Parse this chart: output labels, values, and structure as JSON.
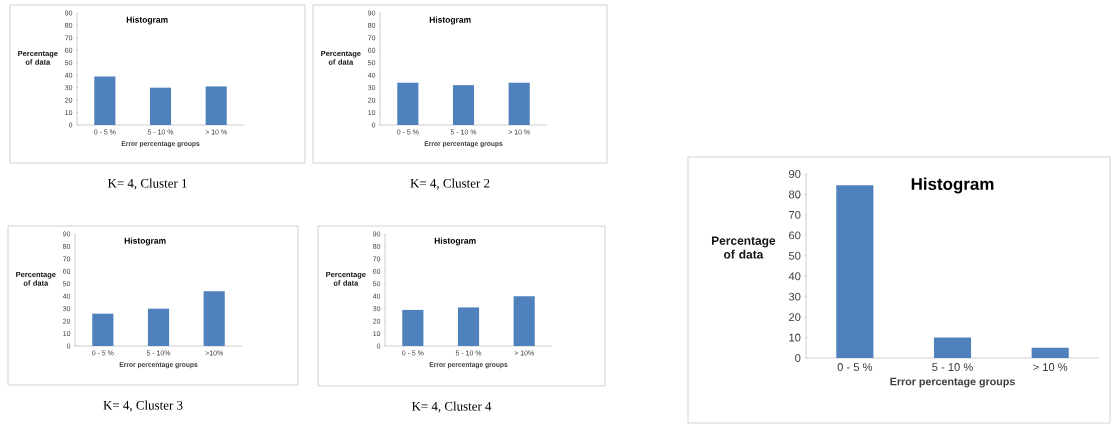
{
  "chart_data": [
    {
      "type": "bar",
      "title": "Histogram",
      "xlabel": "Error percentage groups",
      "ylabel": "Percentage of data",
      "categories": [
        "0 - 5 %",
        "5 - 10 %",
        "> 10 %"
      ],
      "values": [
        39,
        30,
        31
      ],
      "color": "#4f81bd",
      "ylim": [
        0,
        90
      ],
      "yticks": [
        0,
        10,
        20,
        30,
        40,
        50,
        60,
        70,
        80,
        90
      ],
      "annotations": [
        "K= 4, Cluster 1"
      ]
    },
    {
      "type": "bar",
      "title": "Histogram",
      "xlabel": "Error percentage groups",
      "ylabel": "Percentage of data",
      "categories": [
        "0 - 5 %",
        "5 - 10 %",
        "> 10 %"
      ],
      "values": [
        34,
        32,
        34
      ],
      "color": "#4f81bd",
      "ylim": [
        0,
        90
      ],
      "yticks": [
        0,
        10,
        20,
        30,
        40,
        50,
        60,
        70,
        80,
        90
      ],
      "annotations": [
        "K= 4, Cluster 2"
      ]
    },
    {
      "type": "bar",
      "title": "Histogram",
      "xlabel": "Error percentage groups",
      "ylabel": "Percentage of data",
      "categories": [
        "0 - 5 %",
        "5 - 10%",
        ">10%"
      ],
      "values": [
        26,
        30,
        44
      ],
      "color": "#4f81bd",
      "ylim": [
        0,
        90
      ],
      "yticks": [
        0,
        10,
        20,
        30,
        40,
        50,
        60,
        70,
        80,
        90
      ],
      "annotations": [
        "K= 4, Cluster 3"
      ]
    },
    {
      "type": "bar",
      "title": "Histogram",
      "xlabel": "Error percentage groups",
      "ylabel": "Percentage of data",
      "categories": [
        "0 - 5 %",
        "5 - 10 %",
        "> 10%"
      ],
      "values": [
        29,
        31,
        40
      ],
      "color": "#4f81bd",
      "ylim": [
        0,
        90
      ],
      "yticks": [
        0,
        10,
        20,
        30,
        40,
        50,
        60,
        70,
        80,
        90
      ],
      "annotations": [
        "K= 4, Cluster 4"
      ]
    },
    {
      "type": "bar",
      "title": "Histogram",
      "xlabel": "Error percentage groups",
      "ylabel": "Percentage of data",
      "categories": [
        "0 - 5 %",
        "5 - 10 %",
        "> 10 %"
      ],
      "values": [
        84.5,
        10,
        5
      ],
      "color": "#4f81bd",
      "ylim": [
        0,
        90
      ],
      "yticks": [
        0,
        10,
        20,
        30,
        40,
        50,
        60,
        70,
        80,
        90
      ]
    }
  ]
}
